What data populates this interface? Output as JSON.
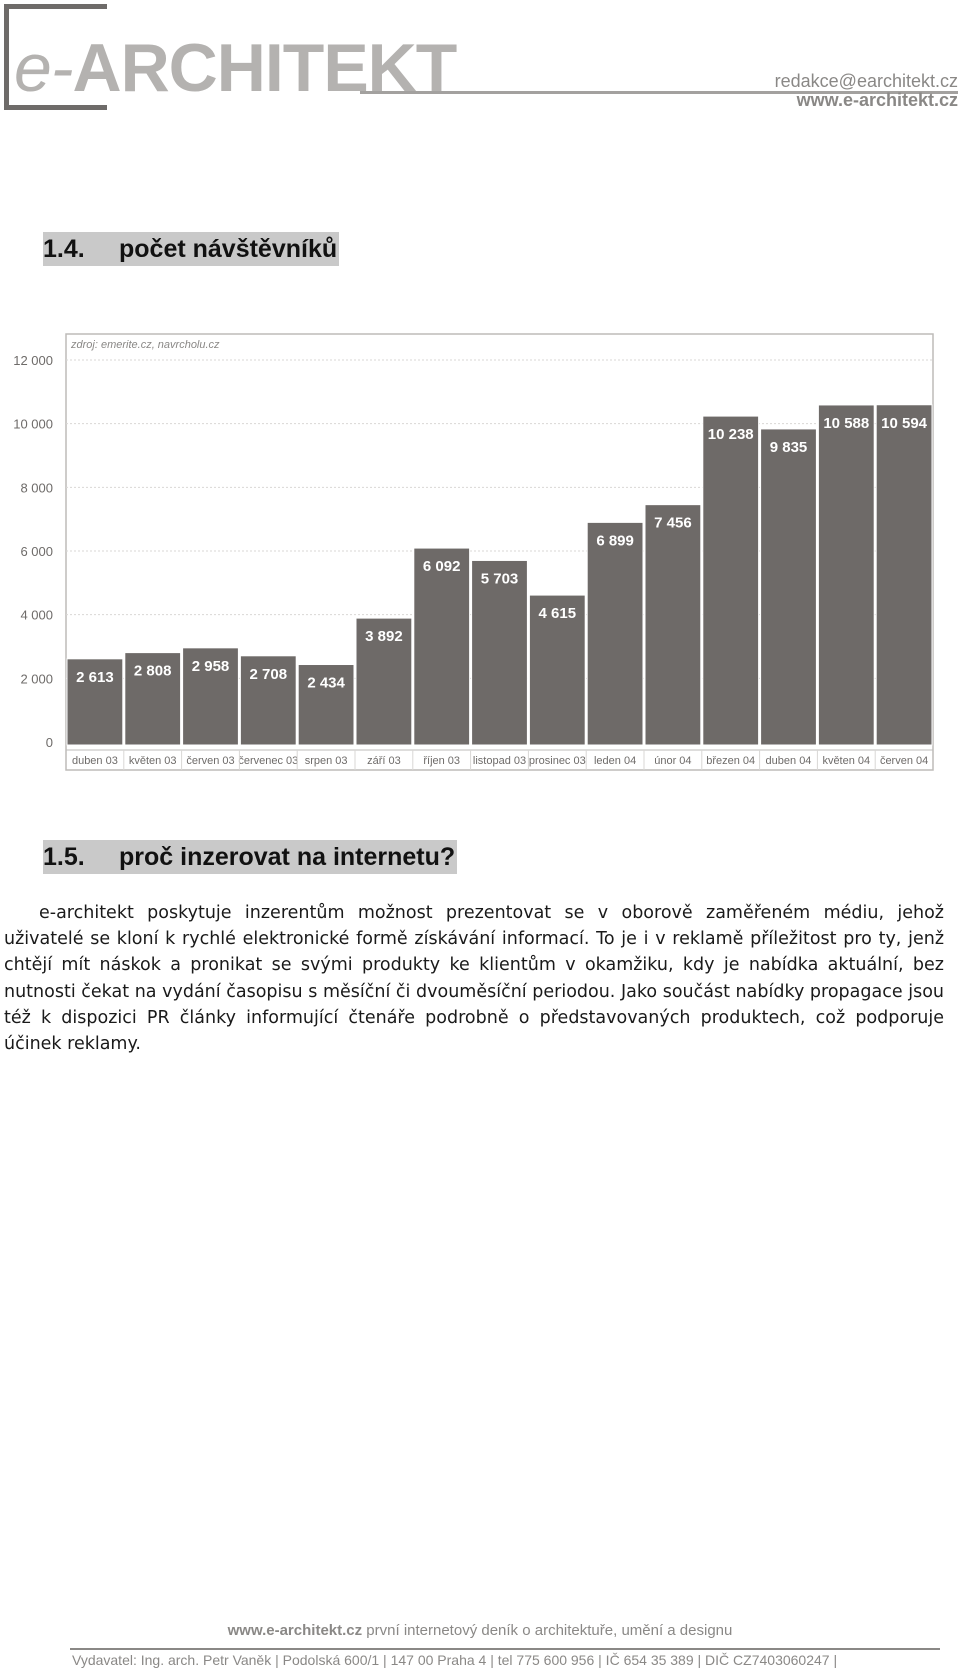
{
  "header": {
    "logo_prefix": "e-",
    "logo_name": "ARCHITEKT",
    "email": "redakce@earchitekt.cz",
    "website": "www.e-architekt.cz"
  },
  "section_1_4": {
    "number": "1.4.",
    "title": "počet návštěvníků"
  },
  "chart_data": {
    "type": "bar",
    "source_note": "zdroj: emerite.cz, navrcholu.cz",
    "categories": [
      "duben 03",
      "květen 03",
      "červen 03",
      "červenec 03",
      "srpen 03",
      "září 03",
      "říjen 03",
      "listopad 03",
      "prosinec 03",
      "leden 04",
      "únor 04",
      "březen 04",
      "duben 04",
      "květen 04",
      "červen 04"
    ],
    "values": [
      2613,
      2808,
      2958,
      2708,
      2434,
      3892,
      6092,
      5703,
      4615,
      6899,
      7456,
      10238,
      9835,
      10588,
      10594
    ],
    "value_labels": [
      "2 613",
      "2 808",
      "2 958",
      "2 708",
      "2 434",
      "3 892",
      "6 092",
      "5 703",
      "4 615",
      "6 899",
      "7 456",
      "10 238",
      "9 835",
      "10 588",
      "10 594"
    ],
    "y_ticks": [
      "0",
      "2 000",
      "4 000",
      "6 000",
      "8 000",
      "10 000",
      "12 000"
    ],
    "ylim": [
      0,
      12000
    ],
    "grid": true,
    "bar_color": "#6e6a68"
  },
  "section_1_5": {
    "number": "1.5.",
    "title": "proč inzerovat na internetu?",
    "paragraph": "e-architekt poskytuje inzerentům možnost prezentovat se v oborově zaměřeném médiu, jehož uživatelé se kloní k rychlé elektronické formě získávání informací. To je i v reklamě příležitost pro ty, jenž chtějí mít náskok a pronikat se svými produkty ke klientům v okamžiku, kdy je nabídka aktuální, bez nutnosti čekat na vydání časopisu s měsíční či dvouměsíční periodou. Jako součást nabídky propagace jsou též k dispozici PR články informující čtenáře podrobně o představovaných produktech, což podporuje účinek reklamy."
  },
  "footer": {
    "site": "www.e-architekt.cz",
    "tagline": " první internetový deník o architektuře, umění a designu",
    "publisher_line": "Vydavatel: Ing. arch. Petr Vaněk | Podolská 600/1 | 147 00 Praha 4 | tel 775 600 956 | IČ 654 35 389 | DIČ CZ7403060247 |"
  }
}
